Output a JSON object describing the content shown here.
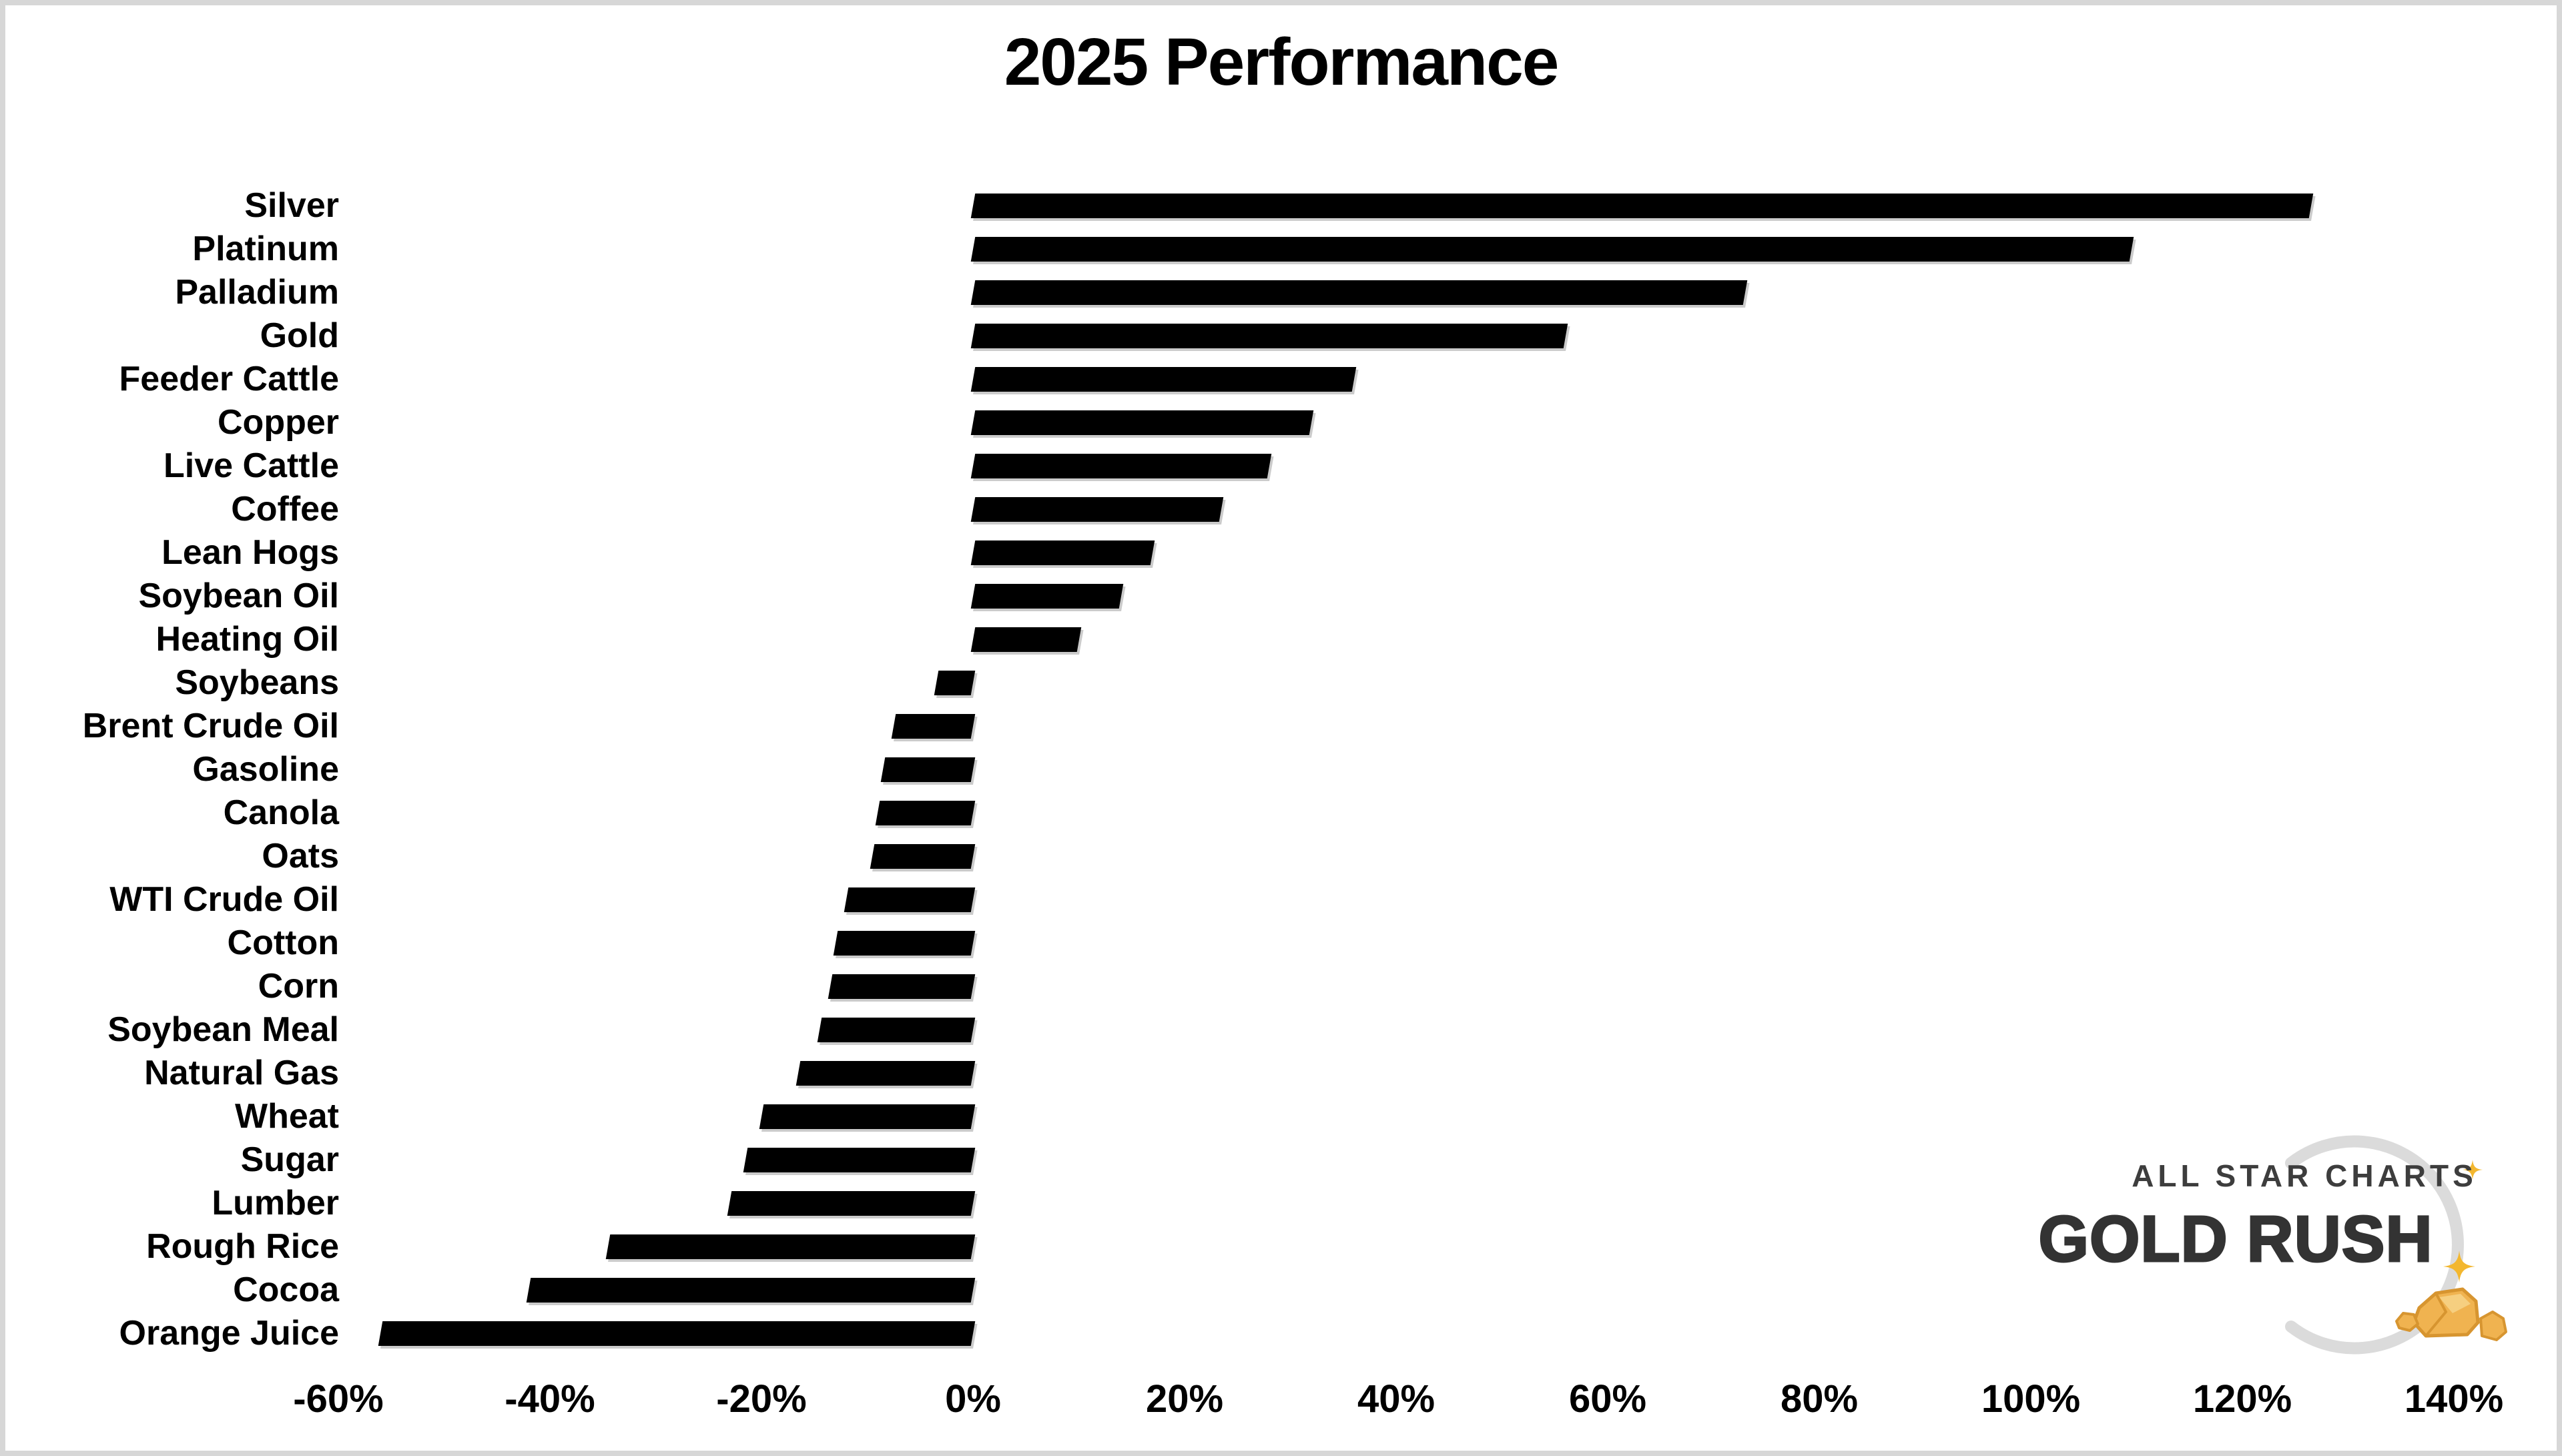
{
  "title": "2025 Performance",
  "chart_data": {
    "type": "bar",
    "orientation": "horizontal",
    "title": "2025 Performance",
    "xlabel": "",
    "ylabel": "",
    "grid": false,
    "bar_color": "#000000",
    "categories": [
      "Silver",
      "Platinum",
      "Palladium",
      "Gold",
      "Feeder Cattle",
      "Copper",
      "Live Cattle",
      "Coffee",
      "Lean Hogs",
      "Soybean Oil",
      "Heating Oil",
      "Soybeans",
      "Brent Crude Oil",
      "Gasoline",
      "Canola",
      "Oats",
      "WTI Crude Oil",
      "Cotton",
      "Corn",
      "Soybean Meal",
      "Natural Gas",
      "Wheat",
      "Sugar",
      "Lumber",
      "Rough Rice",
      "Cocoa",
      "Orange Juice"
    ],
    "values": [
      126.5,
      109.5,
      73,
      56,
      36,
      32,
      28,
      23.5,
      17,
      14,
      10,
      -3.5,
      -7.5,
      -8.5,
      -9,
      -9.5,
      -12,
      -13,
      -13.5,
      -14.5,
      -16.5,
      -20,
      -21.5,
      -23,
      -34.5,
      -42,
      -56
    ],
    "value_unit": "%",
    "x_axis": {
      "min": -70,
      "max": 150,
      "ticks": [
        "-60%",
        "-40%",
        "-20%",
        "0%",
        "20%",
        "40%",
        "60%",
        "80%",
        "100%",
        "120%",
        "140%"
      ],
      "tick_values": [
        -60,
        -40,
        -20,
        0,
        20,
        40,
        60,
        80,
        100,
        120,
        140
      ]
    },
    "legend": null
  },
  "logo": {
    "line1": "ALL STAR CHARTS",
    "line2": "GOLD RUSH",
    "text_color": "#3d3d3d",
    "title_color": "#333333",
    "arc_color": "#dbdbdb",
    "sparkle_color": "#f3b72f",
    "nugget_color": "#f0b350",
    "nugget_edge_color": "#d79530"
  }
}
